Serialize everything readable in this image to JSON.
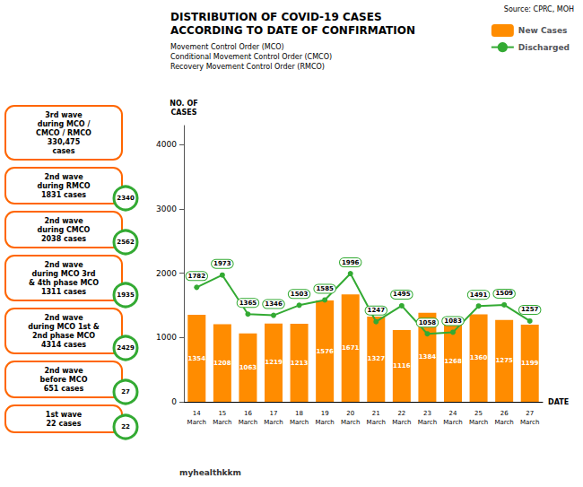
{
  "chart_data": {
    "type": "bar",
    "title": "DISTRIBUTION OF COVID-19 CASES\nACCORDING TO DATE OF CONFIRMATION",
    "subtitle": "Movement Control Order (MCO)\nConditional Movement Control Order (CMCO)\nRecovery Movement Control Order (RMCO)",
    "source": "Source: CPRC, MOH",
    "footer": "myhealthkkm",
    "xlabel": "DATE",
    "ylabel": "NO. OF\nCASES",
    "categories": [
      "14\nMarch",
      "15\nMarch",
      "16\nMarch",
      "17\nMarch",
      "18\nMarch",
      "19\nMarch",
      "20\nMarch",
      "21\nMarch",
      "22\nMarch",
      "23\nMarch",
      "24\nMarch",
      "25\nMarch",
      "26\nMarch",
      "27\nMarch"
    ],
    "series": [
      {
        "name": "New Cases",
        "type": "bar",
        "color": "#FF8C00",
        "values": [
          1354,
          1208,
          1063,
          1219,
          1213,
          1576,
          1671,
          1327,
          1116,
          1384,
          1268,
          1360,
          1275,
          1199
        ]
      },
      {
        "name": "Discharged",
        "type": "line",
        "color": "#33AA33",
        "values": [
          1782,
          1973,
          1365,
          1346,
          1503,
          1585,
          1996,
          1247,
          1495,
          1058,
          1083,
          1491,
          1509,
          1257
        ]
      }
    ],
    "ylim": [
      0,
      4300
    ],
    "yticks": [
      0,
      1000,
      2000,
      3000,
      4000
    ],
    "grid": false,
    "legend": "upper right",
    "data_labels": true,
    "annotations": [
      {
        "text": "3rd wave\nduring MCO /\nCMCO / RMCO\n330,475\ncases"
      },
      {
        "text": "2nd wave\nduring RMCO\n1831 cases",
        "badge": "2340"
      },
      {
        "text": "2nd wave\nduring CMCO\n2038 cases",
        "badge": "2562"
      },
      {
        "text": "2nd wave\nduring MCO 3rd\n& 4th phase MCO\n1311 cases",
        "badge": "1935"
      },
      {
        "text": "2nd wave\nduring MCO 1st &\n2nd phase MCO\n4314 cases",
        "badge": "2429"
      },
      {
        "text": "2nd wave\nbefore MCO\n651 cases",
        "badge": "27"
      },
      {
        "text": "1st wave\n22 cases",
        "badge": "22"
      }
    ]
  }
}
